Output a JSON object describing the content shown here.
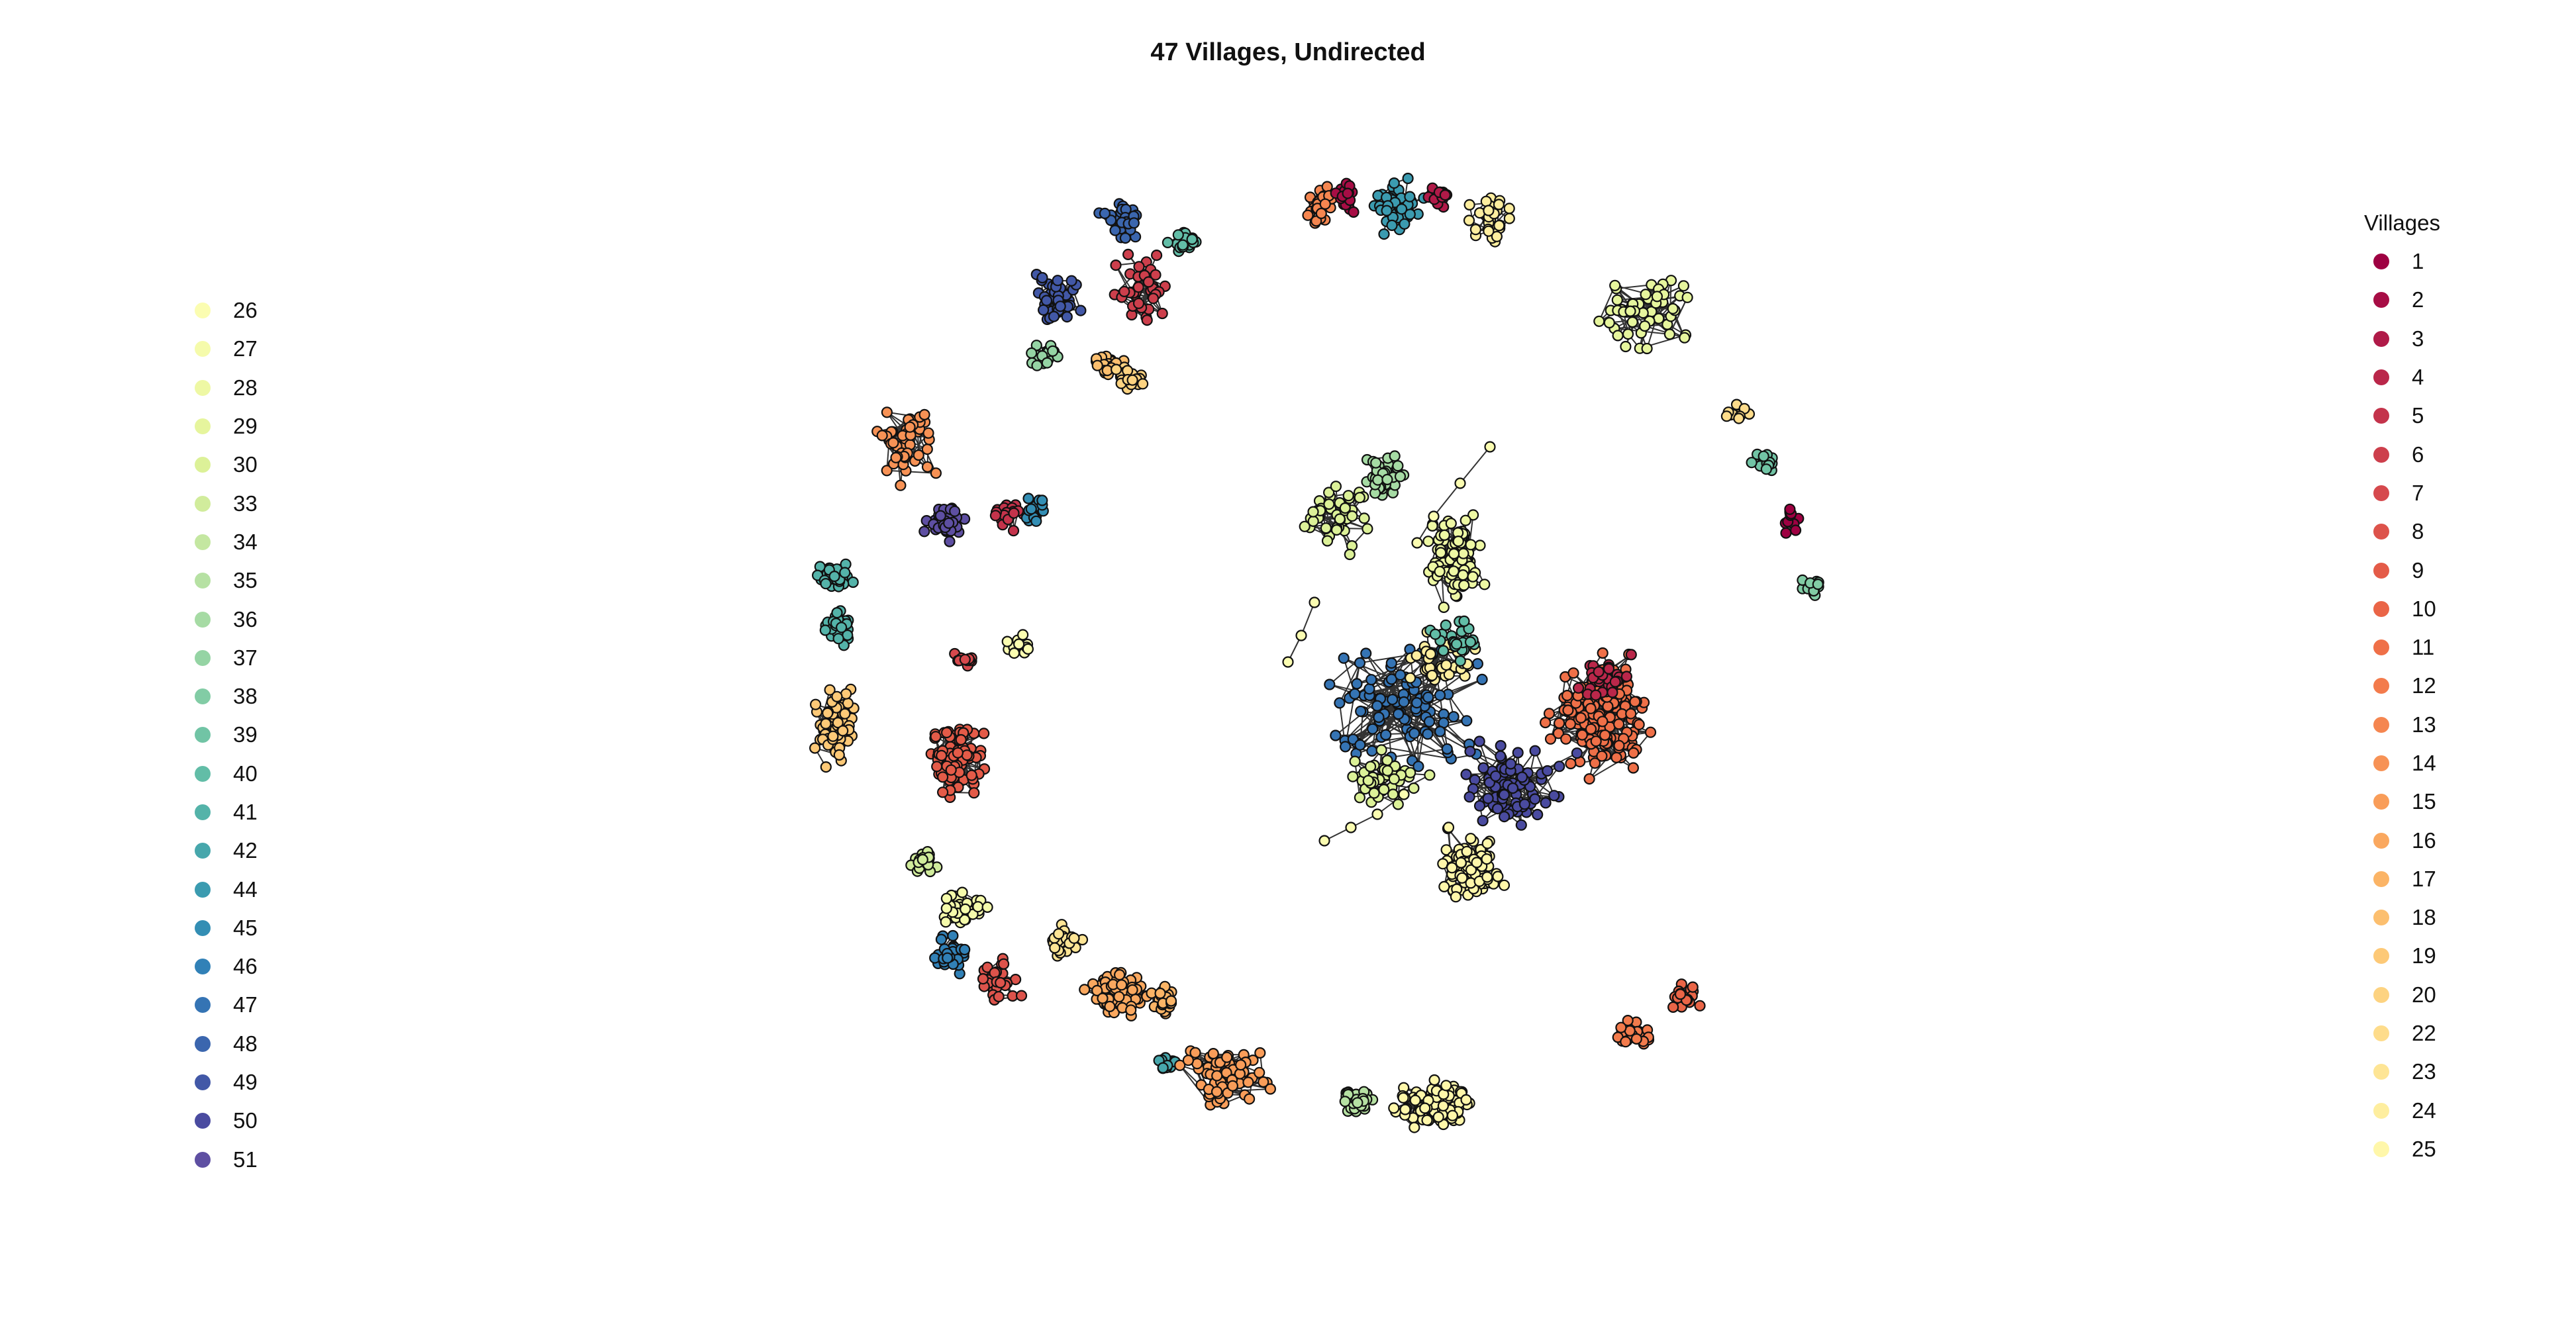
{
  "title": "47 Villages, Undirected",
  "legend_right": {
    "title": "Villages",
    "items": [
      {
        "label": "1",
        "color": "#9e0142"
      },
      {
        "label": "2",
        "color": "#a70d45"
      },
      {
        "label": "3",
        "color": "#b01a48"
      },
      {
        "label": "4",
        "color": "#ba274a"
      },
      {
        "label": "5",
        "color": "#c4334b"
      },
      {
        "label": "6",
        "color": "#cd3f4c"
      },
      {
        "label": "7",
        "color": "#d6494d"
      },
      {
        "label": "8",
        "color": "#dd534b"
      },
      {
        "label": "9",
        "color": "#e45b48"
      },
      {
        "label": "10",
        "color": "#ea6547"
      },
      {
        "label": "11",
        "color": "#ef7048"
      },
      {
        "label": "12",
        "color": "#f37b4c"
      },
      {
        "label": "13",
        "color": "#f58650"
      },
      {
        "label": "14",
        "color": "#f79255"
      },
      {
        "label": "15",
        "color": "#f99d59"
      },
      {
        "label": "16",
        "color": "#faa85f"
      },
      {
        "label": "17",
        "color": "#fbb466"
      },
      {
        "label": "18",
        "color": "#fcbf6f"
      },
      {
        "label": "19",
        "color": "#fdc977"
      },
      {
        "label": "20",
        "color": "#fdd381"
      },
      {
        "label": "22",
        "color": "#fedc8b"
      },
      {
        "label": "23",
        "color": "#fee595"
      },
      {
        "label": "24",
        "color": "#feee9f"
      },
      {
        "label": "25",
        "color": "#fff7aa"
      }
    ]
  },
  "legend_left": {
    "items": [
      {
        "label": "26",
        "color": "#fbfdb1"
      },
      {
        "label": "27",
        "color": "#f5fbab"
      },
      {
        "label": "28",
        "color": "#eef8a4"
      },
      {
        "label": "29",
        "color": "#e6f59d"
      },
      {
        "label": "30",
        "color": "#dcf198"
      },
      {
        "label": "33",
        "color": "#d1ec9c"
      },
      {
        "label": "34",
        "color": "#c4e7a1"
      },
      {
        "label": "35",
        "color": "#b6e1a3"
      },
      {
        "label": "36",
        "color": "#a6dba4"
      },
      {
        "label": "37",
        "color": "#95d4a4"
      },
      {
        "label": "38",
        "color": "#82cca5"
      },
      {
        "label": "39",
        "color": "#71c4a5"
      },
      {
        "label": "40",
        "color": "#62bda7"
      },
      {
        "label": "41",
        "color": "#54b3a9"
      },
      {
        "label": "42",
        "color": "#47a7ac"
      },
      {
        "label": "44",
        "color": "#3b9bb0"
      },
      {
        "label": "45",
        "color": "#338eb4"
      },
      {
        "label": "46",
        "color": "#3181b7"
      },
      {
        "label": "47",
        "color": "#3574b4"
      },
      {
        "label": "48",
        "color": "#3b66ae"
      },
      {
        "label": "49",
        "color": "#4258a7"
      },
      {
        "label": "50",
        "color": "#4a4ba0"
      },
      {
        "label": "51",
        "color": "#5e4fa2"
      }
    ]
  },
  "clusters": [
    {
      "village": "13",
      "color": "#f58650",
      "size": 40
    },
    {
      "village": "2",
      "color": "#a70d45",
      "size": 20
    },
    {
      "village": "44",
      "color": "#3b9bb0",
      "size": 60
    },
    {
      "village": "3",
      "color": "#b01a48",
      "size": 20
    },
    {
      "village": "24",
      "color": "#feee9f",
      "size": 40
    },
    {
      "village": "48",
      "color": "#3b66ae",
      "size": 40
    },
    {
      "village": "40",
      "color": "#62bda7",
      "size": 28
    },
    {
      "village": "49",
      "color": "#4258a7",
      "size": 55
    },
    {
      "village": "6",
      "color": "#cd3f4c",
      "size": 45
    },
    {
      "village": "37",
      "color": "#95d4a4",
      "size": 20
    },
    {
      "village": "18",
      "color": "#fcbf6f",
      "size": 28
    },
    {
      "village": "20",
      "color": "#fdd381",
      "size": 30
    },
    {
      "village": "29",
      "color": "#e6f59d",
      "size": 60
    },
    {
      "village": "22",
      "color": "#fedc8b",
      "size": 15
    },
    {
      "village": "39",
      "color": "#71c4a5",
      "size": 20
    },
    {
      "village": "1",
      "color": "#9e0142",
      "size": 14
    },
    {
      "village": "38",
      "color": "#82cca5",
      "size": 14
    },
    {
      "village": "14",
      "color": "#f79255",
      "size": 60
    },
    {
      "village": "51",
      "color": "#5e4fa2",
      "size": 40
    },
    {
      "village": "5",
      "color": "#c4334b",
      "size": 25
    },
    {
      "village": "45",
      "color": "#338eb4",
      "size": 22
    },
    {
      "village": "41",
      "color": "#54b3a9",
      "size": 45
    },
    {
      "village": "19",
      "color": "#fdc977",
      "size": 70
    },
    {
      "village": "7",
      "color": "#d6494d",
      "size": 12
    },
    {
      "village": "26",
      "color": "#fbfdb1",
      "size": 12
    },
    {
      "village": "9",
      "color": "#e45b48",
      "size": 90
    },
    {
      "village": "33",
      "color": "#d1ec9c",
      "size": 25
    },
    {
      "village": "27",
      "color": "#f5fbab",
      "size": 50
    },
    {
      "village": "46",
      "color": "#3181b7",
      "size": 35
    },
    {
      "village": "23",
      "color": "#fee595",
      "size": 45
    },
    {
      "village": "8",
      "color": "#dd534b",
      "size": 30
    },
    {
      "village": "16",
      "color": "#faa85f",
      "size": 110
    },
    {
      "village": "42",
      "color": "#47a7ac",
      "size": 12
    },
    {
      "village": "17",
      "color": "#fbb466",
      "size": 30
    },
    {
      "village": "15",
      "color": "#f99d59",
      "size": 80
    },
    {
      "village": "35",
      "color": "#b6e1a3",
      "size": 40
    },
    {
      "village": "25",
      "color": "#fff7aa",
      "size": 110
    },
    {
      "village": "12",
      "color": "#f37b4c",
      "size": 30
    },
    {
      "village": "30",
      "color": "#dcf198",
      "size": 50
    },
    {
      "village": "34",
      "color": "#c4e7a1",
      "size": 12
    },
    {
      "village": "36",
      "color": "#a6dba4",
      "size": 50
    },
    {
      "village": "10",
      "color": "#ea6547",
      "size": 25
    },
    {
      "village": "47",
      "color": "#3574b4",
      "size": 120
    },
    {
      "village": "28",
      "color": "#eef8a4",
      "size": 120
    },
    {
      "village": "11",
      "color": "#ef7048",
      "size": 200
    },
    {
      "village": "4",
      "color": "#ba274a",
      "size": 40
    },
    {
      "village": "50",
      "color": "#4a4ba0",
      "size": 100
    }
  ]
}
